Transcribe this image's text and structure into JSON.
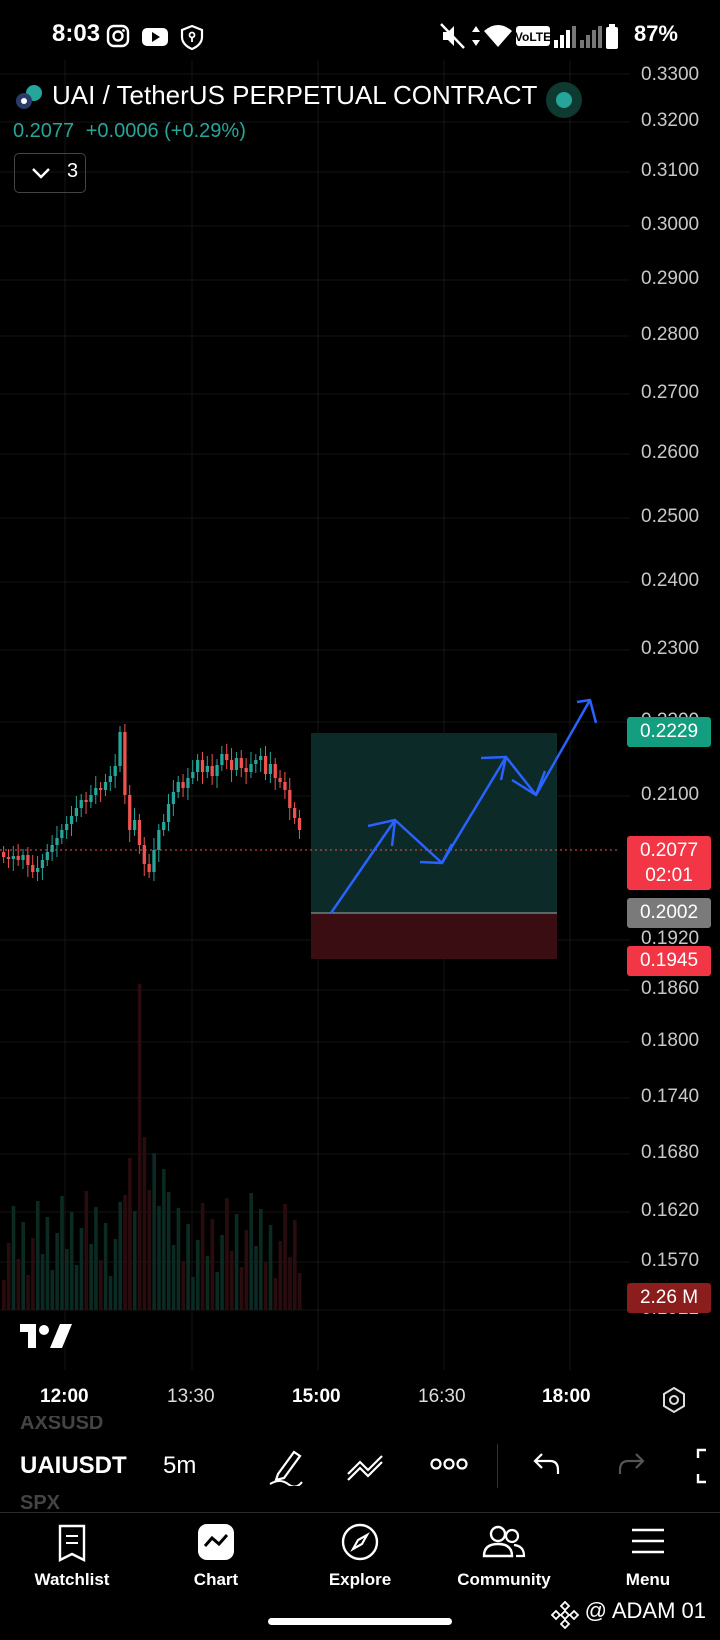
{
  "status_bar": {
    "time": "8:03",
    "battery": "87%",
    "volte": "VoLTE"
  },
  "header": {
    "title": "UAI / TetherUS PERPETUAL CONTRACT",
    "price": "0.2077",
    "change": "+0.0006 (+0.29%)",
    "indicator_count": "3"
  },
  "chart": {
    "y_axis_labels": [
      "0.3300",
      "0.3200",
      "0.3100",
      "0.3000",
      "0.2900",
      "0.2800",
      "0.2700",
      "0.2600",
      "0.2500",
      "0.2400",
      "0.2300",
      "0.2200",
      "0.2100",
      "0.1920",
      "0.1860",
      "0.1800",
      "0.1740",
      "0.1680",
      "0.1620",
      "0.1570",
      "0.1522"
    ],
    "x_axis_labels": [
      "12:00",
      "13:30",
      "15:00",
      "16:30",
      "18:00"
    ],
    "take_profit": "0.2229",
    "current_price": "0.2077",
    "countdown": "02:01",
    "entry": "0.2002",
    "stop_loss": "0.1945",
    "volume": "2.26 M",
    "colors": {
      "up": "#26a69a",
      "down": "#ef5350",
      "profit": "#0b2a28",
      "loss": "#3a0d12",
      "arrow": "#2962ff"
    }
  },
  "toolbar": {
    "symbol": "UAIUSDT",
    "interval": "5m",
    "prev_symbol": "AXSUSD",
    "next_symbol": "SPX"
  },
  "nav": {
    "items": [
      {
        "label": "Watchlist",
        "icon": "watchlist-icon"
      },
      {
        "label": "Chart",
        "icon": "chart-icon"
      },
      {
        "label": "Explore",
        "icon": "compass-icon"
      },
      {
        "label": "Community",
        "icon": "community-icon"
      },
      {
        "label": "Menu",
        "icon": "menu-icon"
      }
    ]
  },
  "watermark": "@ ADAM 01"
}
